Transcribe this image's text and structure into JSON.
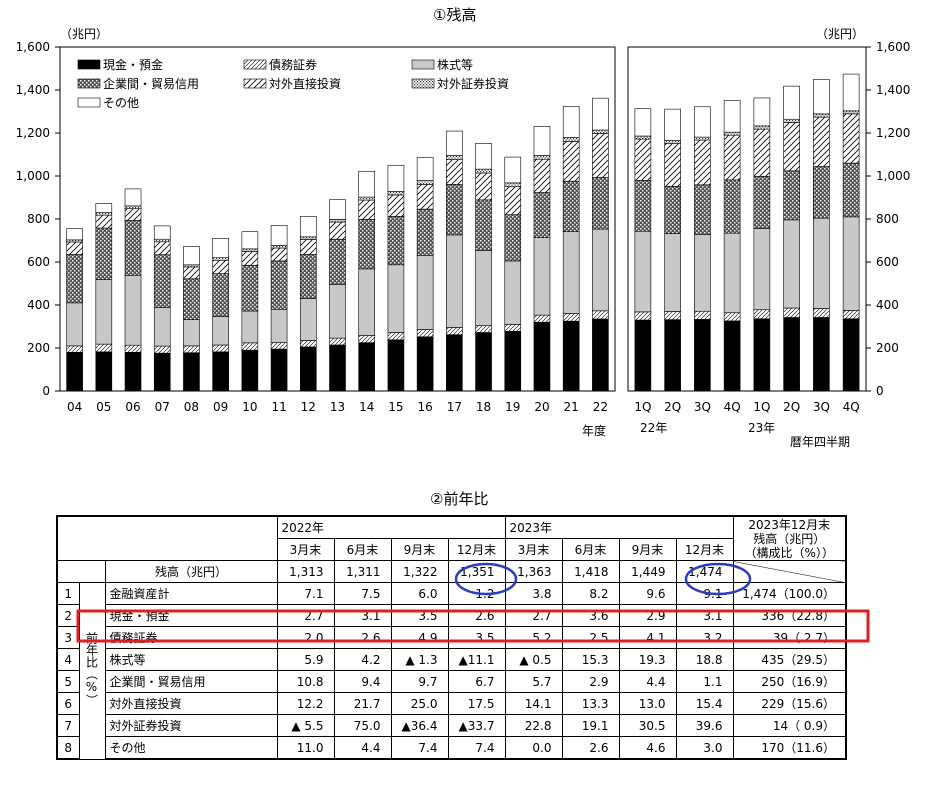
{
  "chart_title": "①残高",
  "table_title": "②前年比",
  "chart_data": [
    {
      "type": "bar",
      "stacked": true,
      "unit_label_left": "（兆円）",
      "xlabel": "年度",
      "ylim": [
        0,
        1600
      ],
      "yticks": [
        "0",
        "200",
        "400",
        "600",
        "800",
        "1,000",
        "1,200",
        "1,400",
        "1,600"
      ],
      "categories": [
        "04",
        "05",
        "06",
        "07",
        "08",
        "09",
        "10",
        "11",
        "12",
        "13",
        "14",
        "15",
        "16",
        "17",
        "18",
        "19",
        "20",
        "21",
        "22"
      ],
      "series": [
        {
          "name": "現金・預金",
          "pattern": "black",
          "values": [
            180,
            182,
            180,
            176,
            178,
            182,
            190,
            195,
            205,
            214,
            225,
            238,
            252,
            262,
            272,
            278,
            320,
            325,
            335
          ]
        },
        {
          "name": "債務証券",
          "pattern": "diag-fine",
          "values": [
            30,
            36,
            33,
            33,
            32,
            32,
            34,
            30,
            30,
            32,
            33,
            34,
            34,
            34,
            32,
            32,
            33,
            36,
            38
          ]
        },
        {
          "name": "株式等",
          "pattern": "gray",
          "values": [
            200,
            300,
            325,
            180,
            122,
            132,
            148,
            155,
            195,
            250,
            310,
            315,
            345,
            430,
            350,
            295,
            360,
            380,
            380
          ]
        },
        {
          "name": "企業間・貿易信用",
          "pattern": "cross",
          "values": [
            225,
            240,
            255,
            245,
            190,
            200,
            212,
            225,
            205,
            210,
            230,
            225,
            215,
            235,
            235,
            215,
            210,
            235,
            240
          ]
        },
        {
          "name": "対外直接投資",
          "pattern": "diag",
          "values": [
            58,
            60,
            55,
            60,
            55,
            62,
            65,
            60,
            70,
            80,
            90,
            100,
            115,
            115,
            125,
            130,
            155,
            185,
            205
          ]
        },
        {
          "name": "対外証券投資",
          "pattern": "dots",
          "values": [
            10,
            12,
            13,
            12,
            10,
            12,
            12,
            12,
            12,
            12,
            14,
            16,
            18,
            20,
            18,
            18,
            18,
            18,
            16
          ]
        },
        {
          "name": "その他",
          "pattern": "white",
          "values": [
            52,
            42,
            79,
            62,
            85,
            90,
            80,
            93,
            95,
            92,
            120,
            122,
            107,
            113,
            120,
            120,
            135,
            145,
            148
          ]
        }
      ]
    },
    {
      "type": "bar",
      "stacked": true,
      "unit_label_right": "（兆円）",
      "xlabel": "暦年四半期",
      "ylim": [
        0,
        1600
      ],
      "yticks": [
        "0",
        "200",
        "400",
        "600",
        "800",
        "1,000",
        "1,200",
        "1,400",
        "1,600"
      ],
      "categories": [
        "1Q",
        "2Q",
        "3Q",
        "4Q",
        "1Q",
        "2Q",
        "3Q",
        "4Q"
      ],
      "year_labels": [
        "22年",
        "23年"
      ],
      "series": [
        {
          "name": "現金・預金",
          "pattern": "black",
          "values": [
            330,
            332,
            333,
            326,
            336,
            342,
            342,
            336
          ]
        },
        {
          "name": "債務証券",
          "pattern": "diag-fine",
          "values": [
            38,
            38,
            38,
            38,
            42,
            44,
            42,
            39
          ]
        },
        {
          "name": "株式等",
          "pattern": "gray",
          "values": [
            375,
            362,
            356,
            370,
            378,
            410,
            420,
            435
          ]
        },
        {
          "name": "企業間・貿易信用",
          "pattern": "cross",
          "values": [
            237,
            220,
            232,
            248,
            242,
            228,
            240,
            250
          ]
        },
        {
          "name": "対外直接投資",
          "pattern": "diag",
          "values": [
            192,
            200,
            208,
            208,
            220,
            225,
            230,
            229
          ]
        },
        {
          "name": "対外証券投資",
          "pattern": "dots",
          "values": [
            14,
            14,
            14,
            14,
            15,
            15,
            15,
            14
          ]
        },
        {
          "name": "その他",
          "pattern": "white",
          "values": [
            127,
            145,
            141,
            147,
            130,
            154,
            160,
            171
          ]
        }
      ]
    }
  ],
  "legend": [
    {
      "label": "現金・預金",
      "pattern": "black"
    },
    {
      "label": "債務証券",
      "pattern": "diag-fine"
    },
    {
      "label": "株式等",
      "pattern": "gray"
    },
    {
      "label": "企業間・貿易信用",
      "pattern": "cross"
    },
    {
      "label": "対外直接投資",
      "pattern": "diag"
    },
    {
      "label": "対外証券投資",
      "pattern": "dots"
    },
    {
      "label": "その他",
      "pattern": "white"
    }
  ],
  "table": {
    "year_2022": "2022年",
    "year_2023": "2023年",
    "month_headers": [
      "3月末",
      "6月末",
      "9月末",
      "12月末",
      "3月末",
      "6月末",
      "9月末",
      "12月末"
    ],
    "right_header": "2023年12月末\n残高（兆円）\n（構成比（%））",
    "balance_label": "残高（兆円）",
    "balance_values": [
      "1,313",
      "1,311",
      "1,322",
      "1,351",
      "1,363",
      "1,418",
      "1,449",
      "1,474"
    ],
    "side_label": "前年比（%）",
    "rows": [
      {
        "no": "1",
        "label": "金融資産計",
        "values": [
          "7.1",
          "7.5",
          "6.0",
          "1.2",
          "3.8",
          "8.2",
          "9.6",
          "9.1"
        ],
        "total": "1,474（100.0）"
      },
      {
        "no": "2",
        "label": "現金・預金",
        "values": [
          "2.7",
          "3.1",
          "3.5",
          "2.6",
          "2.7",
          "3.6",
          "2.9",
          "3.1"
        ],
        "total": "336（22.8）"
      },
      {
        "no": "3",
        "label": "債務証券",
        "values": [
          "2.0",
          "2.6",
          "4.9",
          "3.5",
          "5.2",
          "2.5",
          "4.1",
          "3.2"
        ],
        "total": "39（ 2.7）"
      },
      {
        "no": "4",
        "label": "株式等",
        "values": [
          "5.9",
          "4.2",
          "▲ 1.3",
          "▲11.1",
          "▲ 0.5",
          "15.3",
          "19.3",
          "18.8"
        ],
        "total": "435（29.5）"
      },
      {
        "no": "5",
        "label": "企業間・貿易信用",
        "values": [
          "10.8",
          "9.4",
          "9.7",
          "6.7",
          "5.7",
          "2.9",
          "4.4",
          "1.1"
        ],
        "total": "250（16.9）"
      },
      {
        "no": "6",
        "label": "対外直接投資",
        "values": [
          "12.2",
          "21.7",
          "25.0",
          "17.5",
          "14.1",
          "13.3",
          "13.0",
          "15.4"
        ],
        "total": "229（15.6）"
      },
      {
        "no": "7",
        "label": "対外証券投資",
        "values": [
          "▲ 5.5",
          "75.0",
          "▲36.4",
          "▲33.7",
          "22.8",
          "19.1",
          "30.5",
          "39.6"
        ],
        "total": "14（ 0.9）"
      },
      {
        "no": "8",
        "label": "その他",
        "values": [
          "11.0",
          "4.4",
          "7.4",
          "7.4",
          "0.0",
          "2.6",
          "4.6",
          "3.0"
        ],
        "total": "170（11.6）"
      }
    ]
  },
  "colors": {
    "highlight_box": "#e02020",
    "highlight_ellipse": "#2b3cc0"
  }
}
